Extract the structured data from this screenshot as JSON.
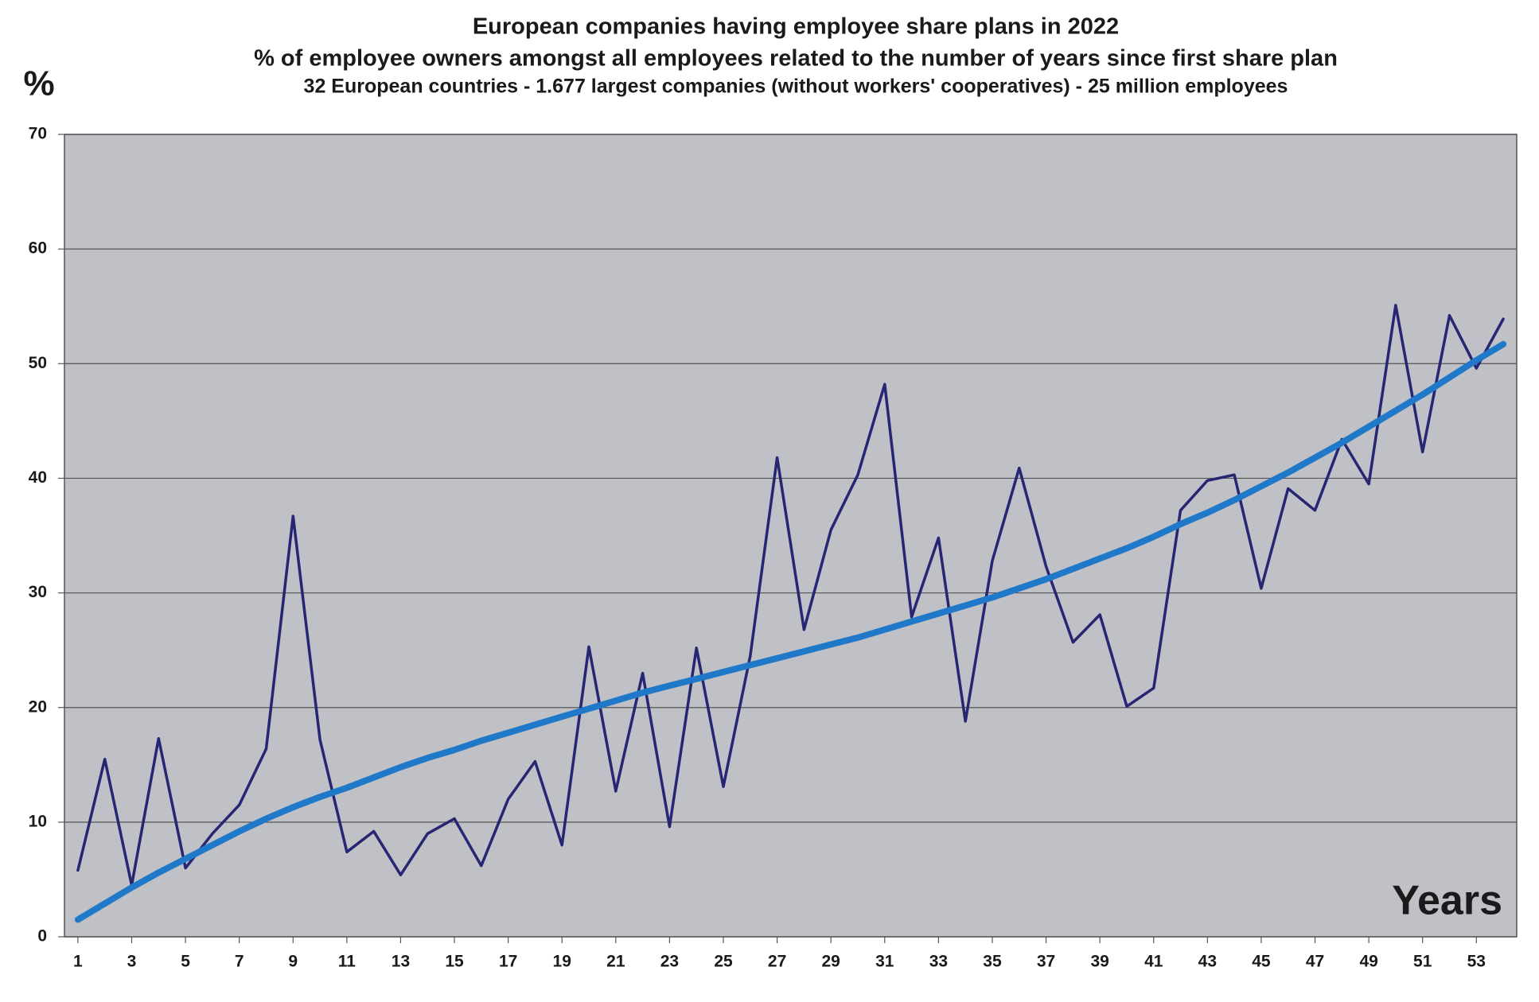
{
  "chart_data": {
    "type": "line",
    "title": "European companies having employee share plans in 2022",
    "subtitle": "% of employee owners amongst all employees related to the number of years since first share plan",
    "subtitle2": "32 European countries - 1.677 largest companies (without workers' cooperatives) - 25 million employees",
    "ylabel": "%",
    "xlabel": "Years",
    "x": [
      1,
      2,
      3,
      4,
      5,
      6,
      7,
      8,
      9,
      10,
      11,
      12,
      13,
      14,
      15,
      16,
      17,
      18,
      19,
      20,
      21,
      22,
      23,
      24,
      25,
      26,
      27,
      28,
      29,
      30,
      31,
      32,
      33,
      34,
      35,
      36,
      37,
      38,
      39,
      40,
      41,
      42,
      43,
      44,
      45,
      46,
      47,
      48,
      49,
      50,
      51,
      52,
      53,
      54
    ],
    "series": [
      {
        "color": "#262673",
        "values": [
          5.8,
          15.5,
          4.5,
          17.3,
          6.0,
          9.0,
          11.5,
          16.4,
          36.7,
          17.2,
          7.4,
          9.2,
          5.4,
          9.0,
          10.3,
          6.2,
          12.0,
          15.3,
          8.0,
          25.3,
          12.7,
          23.0,
          9.6,
          25.2,
          13.1,
          24.5,
          41.8,
          26.8,
          35.5,
          40.3,
          48.2,
          27.9,
          34.8,
          18.8,
          32.8,
          40.9,
          32.3,
          25.7,
          28.1,
          20.1,
          21.7,
          37.2,
          39.8,
          40.3,
          30.4,
          39.1,
          37.2,
          43.4,
          39.5,
          55.1,
          42.3,
          54.2,
          49.6,
          53.9
        ]
      },
      {
        "color": "#1f78c8",
        "values": [
          1.5,
          2.9,
          4.3,
          5.6,
          6.8,
          8.0,
          9.2,
          10.3,
          11.3,
          12.2,
          13.0,
          13.9,
          14.8,
          15.6,
          16.3,
          17.1,
          17.8,
          18.5,
          19.2,
          19.9,
          20.6,
          21.3,
          21.9,
          22.5,
          23.1,
          23.7,
          24.3,
          24.9,
          25.5,
          26.1,
          26.8,
          27.5,
          28.2,
          28.9,
          29.6,
          30.4,
          31.2,
          32.1,
          33.0,
          33.9,
          34.9,
          36.0,
          37.0,
          38.1,
          39.3,
          40.5,
          41.8,
          43.1,
          44.5,
          45.9,
          47.3,
          48.8,
          50.3,
          51.7
        ]
      }
    ],
    "xlim": [
      0.5,
      54.5
    ],
    "xticks": [
      1,
      3,
      5,
      7,
      9,
      11,
      13,
      15,
      17,
      19,
      21,
      23,
      25,
      27,
      29,
      31,
      33,
      35,
      37,
      39,
      41,
      43,
      45,
      47,
      49,
      51,
      53
    ],
    "ylim": [
      0,
      70
    ],
    "yticks": [
      0,
      10,
      20,
      30,
      40,
      50,
      60,
      70
    ],
    "grid": true,
    "plot_background": "#c0c1c6"
  }
}
